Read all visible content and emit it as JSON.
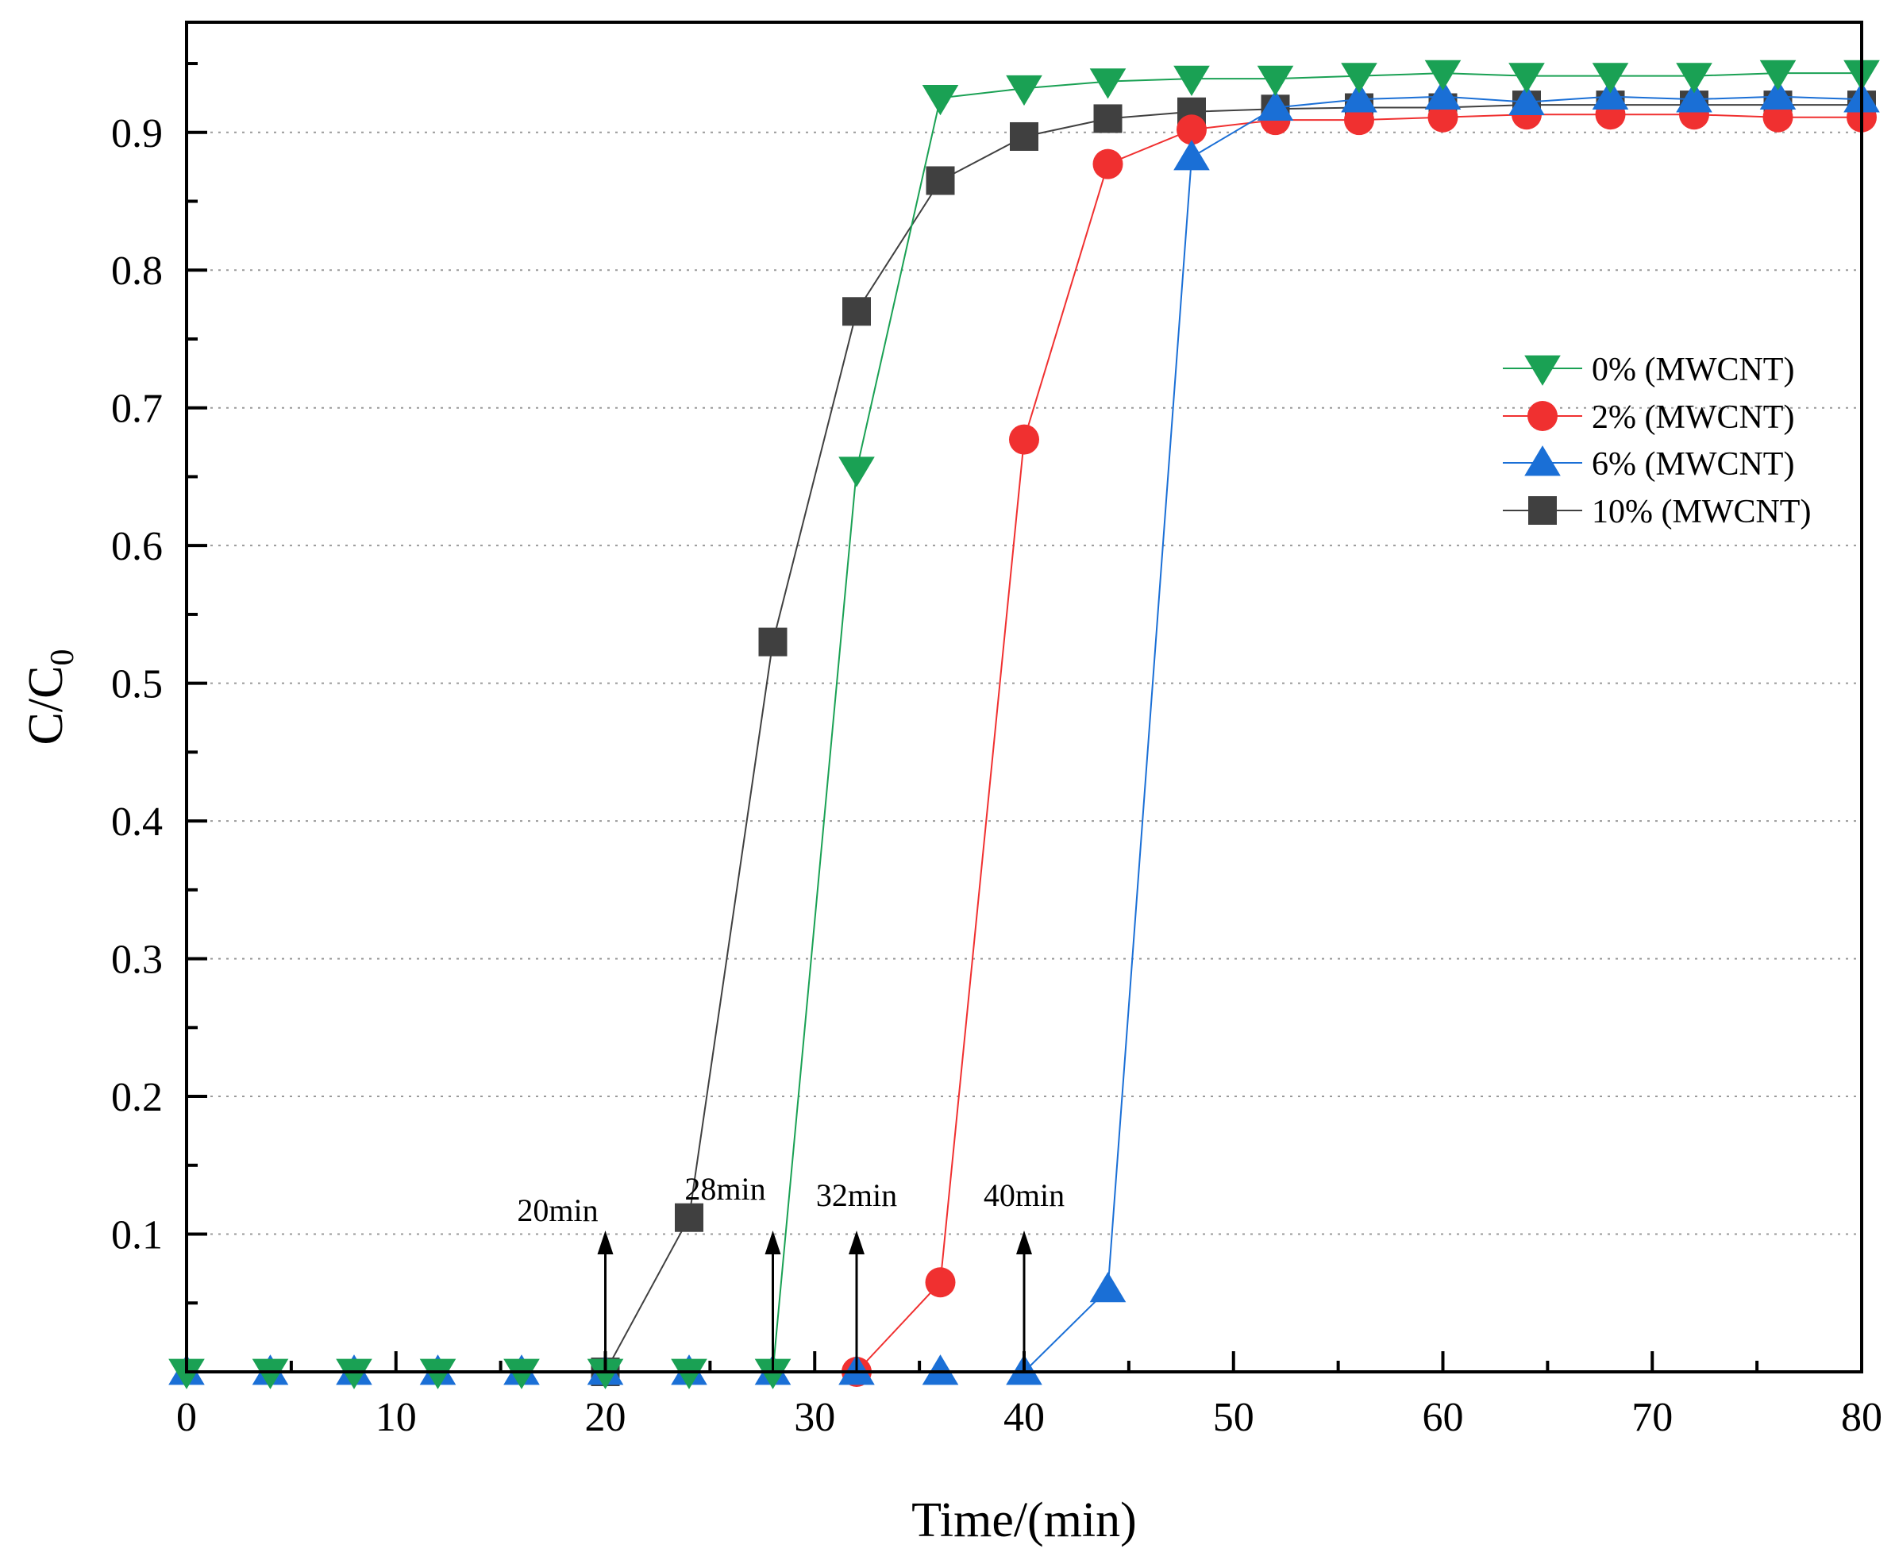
{
  "chart_data": {
    "type": "line",
    "title": "",
    "xlabel": "Time/(min)",
    "ylabel_main": "C/C",
    "ylabel_sub": "0",
    "xlim": [
      0,
      80
    ],
    "ylim": [
      0,
      0.98
    ],
    "x_ticks": [
      0,
      10,
      20,
      30,
      40,
      50,
      60,
      70,
      80
    ],
    "x_tick_labels": [
      "0",
      "10",
      "20",
      "30",
      "40",
      "50",
      "60",
      "70",
      "80"
    ],
    "y_ticks": [
      0.1,
      0.2,
      0.3,
      0.4,
      0.5,
      0.6,
      0.7,
      0.8,
      0.9
    ],
    "y_tick_labels": [
      "0.1",
      "0.2",
      "0.3",
      "0.4",
      "0.5",
      "0.6",
      "0.7",
      "0.8",
      "0.9"
    ],
    "grid": "horizontal dotted",
    "legend_position": "right",
    "series": [
      {
        "name": "0% (MWCNT)",
        "color": "#1aa154",
        "marker": "triangle-down",
        "x": [
          0,
          4,
          8,
          12,
          16,
          20,
          24,
          28,
          32,
          36,
          40,
          44,
          48,
          52,
          56,
          60,
          64,
          68,
          72,
          76,
          80
        ],
        "y": [
          0,
          0,
          0,
          0,
          0,
          0,
          0,
          0,
          0.655,
          0.925,
          0.932,
          0.937,
          0.939,
          0.939,
          0.941,
          0.943,
          0.941,
          0.941,
          0.941,
          0.943,
          0.943
        ]
      },
      {
        "name": "2% (MWCNT)",
        "color": "#f03030",
        "marker": "circle",
        "x": [
          32,
          36,
          40,
          44,
          48,
          52,
          56,
          60,
          64,
          68,
          72,
          76,
          80
        ],
        "y": [
          0,
          0.065,
          0.677,
          0.877,
          0.902,
          0.909,
          0.909,
          0.911,
          0.913,
          0.913,
          0.913,
          0.911,
          0.911
        ]
      },
      {
        "name": "6% (MWCNT)",
        "color": "#1a6fd6",
        "marker": "triangle-up",
        "x": [
          0,
          4,
          8,
          12,
          16,
          20,
          24,
          28,
          32,
          36,
          40,
          44,
          48,
          52,
          56,
          60,
          64,
          68,
          72,
          76,
          80
        ],
        "y": [
          0,
          0,
          0,
          0,
          0,
          0,
          0,
          0,
          0,
          0,
          0,
          0.06,
          0.882,
          0.918,
          0.924,
          0.926,
          0.922,
          0.926,
          0.924,
          0.926,
          0.924
        ]
      },
      {
        "name": "10% (MWCNT)",
        "color": "#404040",
        "marker": "square",
        "x": [
          20,
          24,
          28,
          32,
          36,
          40,
          44,
          48,
          52,
          56,
          60,
          64,
          68,
          72,
          76,
          80
        ],
        "y": [
          0,
          0.112,
          0.53,
          0.77,
          0.865,
          0.897,
          0.91,
          0.915,
          0.917,
          0.918,
          0.918,
          0.92,
          0.92,
          0.92,
          0.92,
          0.92
        ]
      }
    ],
    "annotations": [
      {
        "label": "20min",
        "x": 20
      },
      {
        "label": "28min",
        "x": 28
      },
      {
        "label": "32min",
        "x": 32
      },
      {
        "label": "40min",
        "x": 40
      }
    ]
  }
}
